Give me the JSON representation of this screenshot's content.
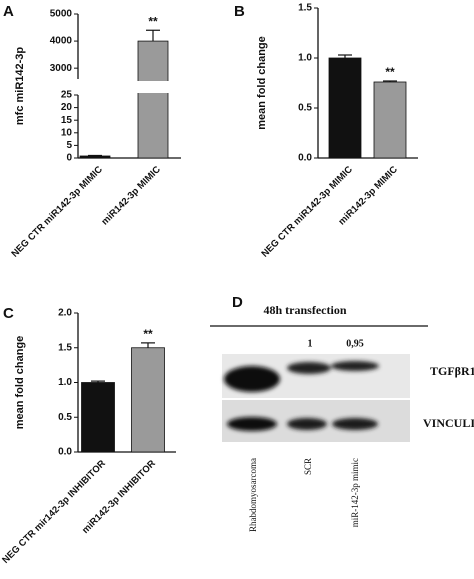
{
  "chart_data": [
    {
      "type": "bar",
      "panel": "A",
      "ylabel": "mfc miR142-3p",
      "categories": [
        "NEG CTR miR142-3p MIMIC",
        "miR142-3p MIMIC"
      ],
      "values": [
        0.8,
        4000
      ],
      "errors": [
        0.2,
        400
      ],
      "colors": [
        "#111111",
        "#9a9a9a"
      ],
      "ylim": [
        0,
        5000
      ],
      "ybreak": [
        25,
        2600
      ],
      "yticks": [
        0,
        5,
        10,
        15,
        20,
        25,
        3000,
        4000,
        5000
      ],
      "annotation": "**"
    },
    {
      "type": "bar",
      "panel": "B",
      "ylabel": "mean fold change",
      "categories": [
        "NEG CTR miR142-3p MIMIC",
        "miR142-3p MIMIC"
      ],
      "values": [
        1.0,
        0.76
      ],
      "errors": [
        0.03,
        0.01
      ],
      "colors": [
        "#111111",
        "#9a9a9a"
      ],
      "ylim": [
        0,
        1.5
      ],
      "yticks": [
        {
          "value": 0,
          "label": "0.0"
        },
        {
          "value": 0.5,
          "label": "0.5"
        },
        {
          "value": 1,
          "label": "1.0"
        },
        {
          "value": 1.5,
          "label": "1.5"
        }
      ],
      "annotation": "**"
    },
    {
      "type": "bar",
      "panel": "C",
      "ylabel": "mean fold change",
      "categories": [
        "NEG CTR mir142-3p INHIBITOR",
        "miR142-3p INHIBITOR"
      ],
      "values": [
        1.0,
        1.5
      ],
      "errors": [
        0.02,
        0.07
      ],
      "colors": [
        "#111111",
        "#9a9a9a"
      ],
      "ylim": [
        0,
        2
      ],
      "yticks": [
        {
          "value": 0,
          "label": "0.0"
        },
        {
          "value": 0.5,
          "label": "0.5"
        },
        {
          "value": 1,
          "label": "1.0"
        },
        {
          "value": 1.5,
          "label": "1.5"
        },
        {
          "value": 2,
          "label": "2.0"
        }
      ],
      "annotation": "**"
    }
  ],
  "blot": {
    "panel": "D",
    "title": "48h transfection",
    "quantification": [
      "1",
      "0,95"
    ],
    "rows": [
      "TGFβR1",
      "VINCULINE"
    ],
    "lanes": [
      "Rhabdomyosarcoma",
      "SCR",
      "miR-142-3p mimic"
    ]
  }
}
